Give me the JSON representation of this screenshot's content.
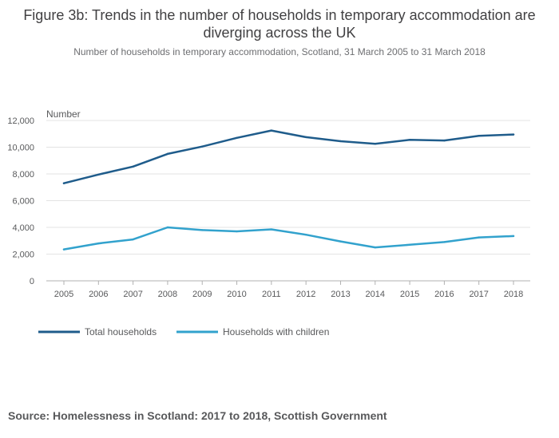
{
  "chart_data": {
    "type": "line",
    "title": "Figure 3b: Trends in the number of households in temporary accommodation are diverging across the UK",
    "subtitle": "Number of households in temporary accommodation, Scotland, 31 March 2005 to 31 March 2018",
    "ylabel": "Number",
    "xlabel": "",
    "x": [
      "2005",
      "2006",
      "2007",
      "2008",
      "2009",
      "2010",
      "2011",
      "2012",
      "2013",
      "2014",
      "2015",
      "2016",
      "2017",
      "2018"
    ],
    "ylim": [
      0,
      12000
    ],
    "yticks": [
      0,
      2000,
      4000,
      6000,
      8000,
      10000,
      12000
    ],
    "ytick_labels": [
      "0",
      "2,000",
      "4,000",
      "6,000",
      "8,000",
      "10,000",
      "12,000"
    ],
    "grid": true,
    "legend_position": "bottom-left",
    "series": [
      {
        "name": "Total households",
        "color": "#1f5c8b",
        "values": [
          7300,
          7950,
          8550,
          9500,
          10050,
          10700,
          11250,
          10750,
          10450,
          10250,
          10550,
          10500,
          10850,
          10950
        ]
      },
      {
        "name": "Households with children",
        "color": "#32a2cd",
        "values": [
          2350,
          2800,
          3100,
          4000,
          3800,
          3700,
          3850,
          3450,
          2950,
          2500,
          2700,
          2900,
          3250,
          3350
        ]
      }
    ]
  },
  "source": "Source: Homelessness in Scotland: 2017 to 2018, Scottish Government"
}
